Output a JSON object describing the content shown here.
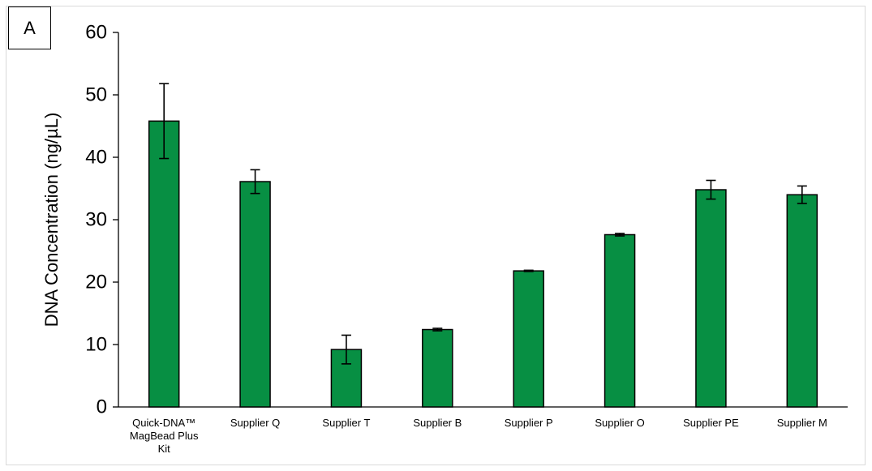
{
  "panel_label": "A",
  "colors": {
    "bar": "#078f43",
    "bar_edge": "#000000",
    "axis": "#000000"
  },
  "chart_data": {
    "type": "bar",
    "title": "",
    "xlabel": "",
    "ylabel": "DNA Concentration (ng/µL)",
    "ylim": [
      0,
      60
    ],
    "yticks": [
      0,
      10,
      20,
      30,
      40,
      50,
      60
    ],
    "grid": false,
    "categories": [
      [
        "Quick-DNA™",
        "MagBead Plus",
        "Kit"
      ],
      [
        "Supplier Q"
      ],
      [
        "Supplier T"
      ],
      [
        "Supplier B"
      ],
      [
        "Supplier P"
      ],
      [
        "Supplier O"
      ],
      [
        "Supplier PE"
      ],
      [
        "Supplier M"
      ]
    ],
    "values": [
      45.8,
      36.1,
      9.2,
      12.4,
      21.8,
      27.6,
      34.8,
      34.0
    ],
    "errors": [
      6.0,
      1.9,
      2.3,
      0.2,
      0.1,
      0.2,
      1.5,
      1.4
    ]
  }
}
